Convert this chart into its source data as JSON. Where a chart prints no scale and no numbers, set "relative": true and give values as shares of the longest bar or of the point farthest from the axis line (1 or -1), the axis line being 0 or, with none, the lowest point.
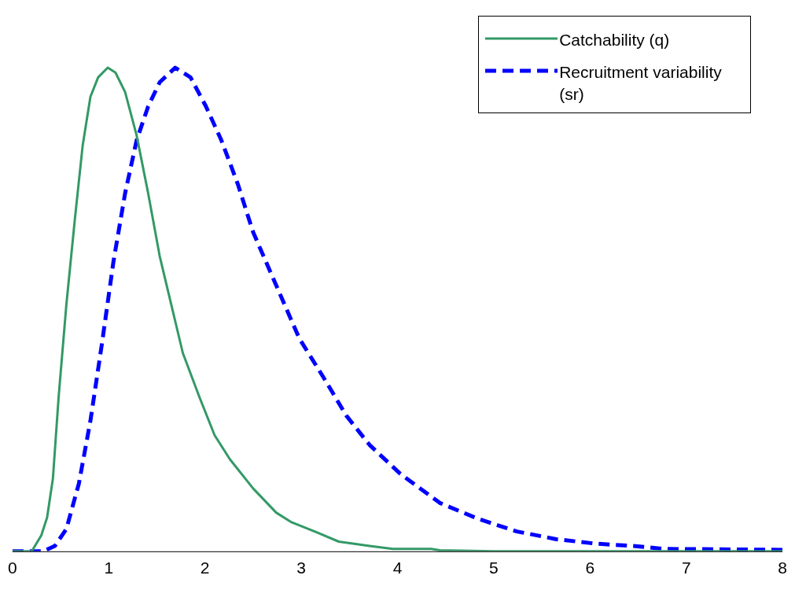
{
  "chart_data": {
    "type": "line",
    "relative": true,
    "xlim": [
      0,
      8
    ],
    "xticks": [
      0,
      1,
      2,
      3,
      4,
      5,
      6,
      7,
      8
    ],
    "grid": false,
    "legend": "top right",
    "marker": "none",
    "series": [
      {
        "name": "Catchability (q)",
        "color": "#339966",
        "line_style": "solid",
        "x": [
          0,
          0.2,
          0.3,
          0.36,
          0.42,
          0.48,
          0.56,
          0.65,
          0.73,
          0.81,
          0.89,
          0.99,
          1.07,
          1.17,
          1.29,
          1.41,
          1.53,
          1.65,
          1.77,
          1.94,
          2.1,
          2.26,
          2.5,
          2.74,
          2.9,
          3.15,
          3.39,
          3.71,
          3.95,
          4.35,
          4.44,
          5.0,
          8
        ],
        "values": [
          0,
          0,
          0.033,
          0.07,
          0.15,
          0.32,
          0.51,
          0.69,
          0.84,
          0.94,
          0.98,
          1.0,
          0.99,
          0.95,
          0.86,
          0.74,
          0.61,
          0.51,
          0.41,
          0.32,
          0.24,
          0.19,
          0.13,
          0.08,
          0.06,
          0.04,
          0.02,
          0.011,
          0.005,
          0.005,
          0.002,
          0,
          0
        ]
      },
      {
        "name": "Recruitment variability (sr)",
        "color": "#0000ff",
        "line_style": "dashed",
        "x": [
          0,
          0.32,
          0.44,
          0.56,
          0.69,
          0.81,
          0.93,
          1.05,
          1.17,
          1.29,
          1.41,
          1.53,
          1.69,
          1.85,
          2.01,
          2.17,
          2.34,
          2.5,
          2.74,
          2.98,
          3.23,
          3.47,
          3.71,
          4.03,
          4.44,
          4.84,
          5.24,
          5.65,
          6.05,
          6.45,
          6.77,
          8
        ],
        "values": [
          0,
          0,
          0.011,
          0.046,
          0.14,
          0.27,
          0.43,
          0.6,
          0.74,
          0.85,
          0.92,
          0.97,
          1.0,
          0.98,
          0.92,
          0.85,
          0.76,
          0.66,
          0.55,
          0.44,
          0.36,
          0.28,
          0.22,
          0.16,
          0.1,
          0.067,
          0.041,
          0.025,
          0.016,
          0.011,
          0.005,
          0.003
        ]
      }
    ]
  }
}
